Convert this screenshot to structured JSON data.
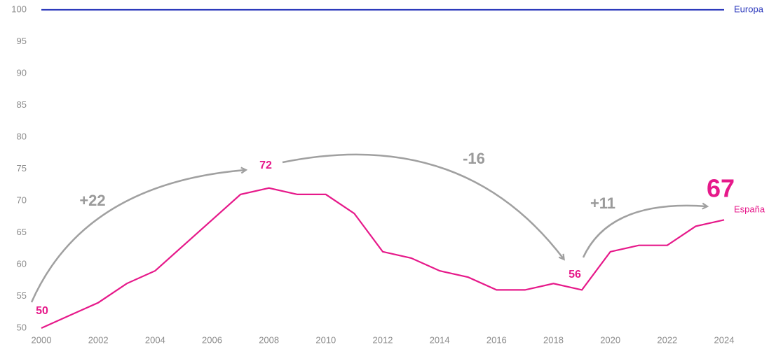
{
  "chart_data": {
    "type": "line",
    "x": [
      2000,
      2001,
      2002,
      2003,
      2004,
      2005,
      2006,
      2007,
      2008,
      2009,
      2010,
      2011,
      2012,
      2013,
      2014,
      2015,
      2016,
      2017,
      2018,
      2019,
      2020,
      2021,
      2022,
      2023,
      2024
    ],
    "series": [
      {
        "name": "Europa",
        "color": "#2e3bbd",
        "values": [
          100,
          100,
          100,
          100,
          100,
          100,
          100,
          100,
          100,
          100,
          100,
          100,
          100,
          100,
          100,
          100,
          100,
          100,
          100,
          100,
          100,
          100,
          100,
          100,
          100
        ]
      },
      {
        "name": "España",
        "color": "#e6198a",
        "values": [
          50,
          52,
          54,
          57,
          59,
          63,
          67,
          71,
          72,
          71,
          71,
          68,
          62,
          61,
          59,
          58,
          56,
          56,
          57,
          56,
          62,
          63,
          63,
          66,
          67
        ]
      }
    ],
    "annotations": [
      "+22",
      "-16",
      "+11"
    ],
    "xlim": [
      2000,
      2024
    ],
    "xticks": [
      2000,
      2002,
      2004,
      2006,
      2008,
      2010,
      2012,
      2014,
      2016,
      2018,
      2020,
      2022,
      2024
    ],
    "ylim": [
      50,
      100
    ],
    "yticks": [
      50,
      55,
      60,
      65,
      70,
      75,
      80,
      85,
      90,
      95,
      100
    ],
    "grid": false
  }
}
